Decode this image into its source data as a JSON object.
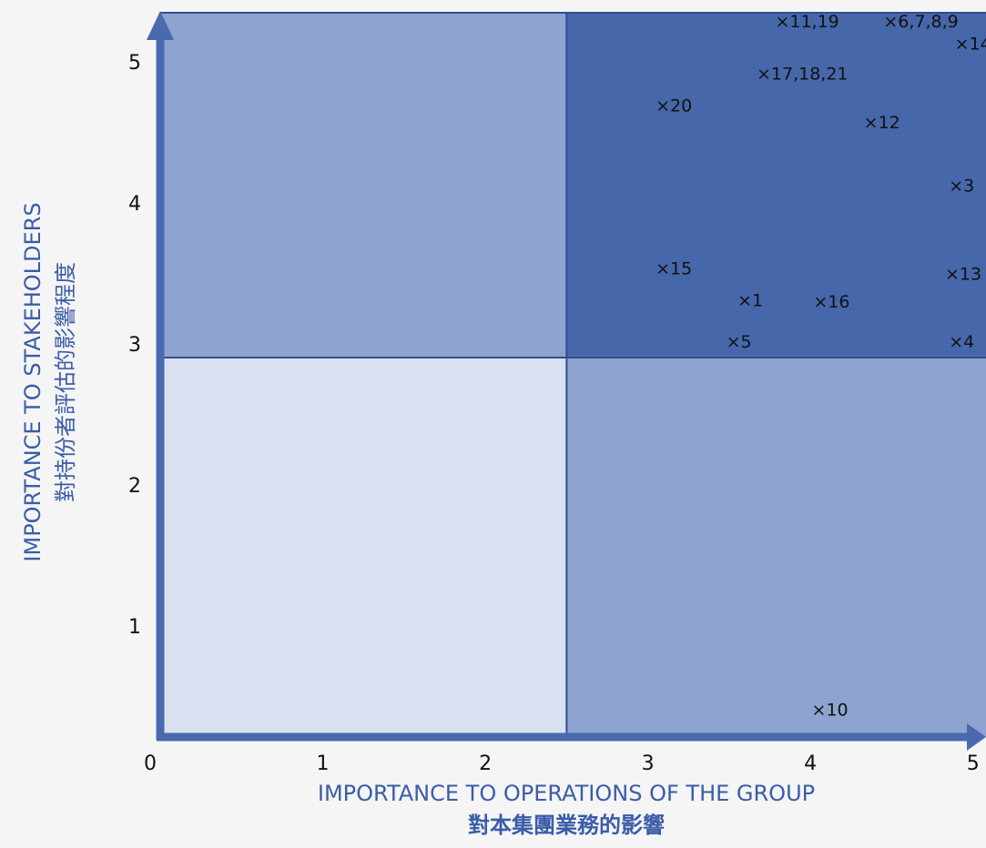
{
  "chart_data": {
    "type": "scatter",
    "title": "",
    "xlabel": "IMPORTANCE TO OPERATIONS OF THE GROUP",
    "xlabel_sub": "對本集團業務的影響",
    "ylabel": "IMPORTANCE TO STAKEHOLDERS",
    "ylabel_sub": "對持份者評估的影響程度",
    "x_ticks": [
      "0",
      "1",
      "2",
      "3",
      "4",
      "5"
    ],
    "y_ticks": [
      "1",
      "2",
      "3",
      "4",
      "5"
    ],
    "xlim": [
      0,
      5.08
    ],
    "ylim": [
      0,
      5.25
    ],
    "grid": false,
    "quadrant_divider": {
      "x": 2.5,
      "y": 2.75
    },
    "quadrants": [
      {
        "name": "low-low",
        "color": "#d9e1f0"
      },
      {
        "name": "low-high",
        "color": "#8ea3cf"
      },
      {
        "name": "high-low",
        "color": "#8ea3cf"
      },
      {
        "name": "high-high",
        "color": "#4667aa"
      }
    ],
    "axis_color": "#4a6ab0",
    "points": [
      {
        "label": "×11,19",
        "x": 3.98,
        "y": 5.19
      },
      {
        "label": "×6,7,8,9",
        "x": 4.68,
        "y": 5.19
      },
      {
        "label": "×14",
        "x": 5.0,
        "y": 5.03
      },
      {
        "label": "×17,18,21",
        "x": 3.95,
        "y": 4.81
      },
      {
        "label": "×20",
        "x": 3.16,
        "y": 4.58
      },
      {
        "label": "×12",
        "x": 4.44,
        "y": 4.46
      },
      {
        "label": "×3",
        "x": 4.93,
        "y": 4.0
      },
      {
        "label": "×15",
        "x": 3.16,
        "y": 3.4
      },
      {
        "label": "×13",
        "x": 4.94,
        "y": 3.36
      },
      {
        "label": "×1",
        "x": 3.63,
        "y": 3.17
      },
      {
        "label": "×16",
        "x": 4.13,
        "y": 3.16
      },
      {
        "label": "×5",
        "x": 3.56,
        "y": 2.87
      },
      {
        "label": "×4",
        "x": 4.93,
        "y": 2.87
      },
      {
        "label": "×10",
        "x": 4.12,
        "y": 0.2
      }
    ]
  }
}
